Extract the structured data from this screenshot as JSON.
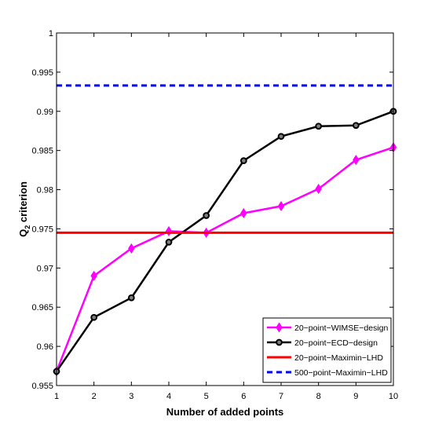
{
  "chart_data": {
    "type": "line",
    "title": "",
    "xlabel": "Number of added points",
    "ylabel_main": "Q",
    "ylabel_sub": "2",
    "ylabel_rest": " criterion",
    "xlim": [
      1,
      10
    ],
    "ylim": [
      0.955,
      1
    ],
    "x": [
      1,
      2,
      3,
      4,
      5,
      6,
      7,
      8,
      9,
      10
    ],
    "x_tick_labels": [
      "1",
      "2",
      "3",
      "4",
      "5",
      "6",
      "7",
      "8",
      "9",
      "10"
    ],
    "y_ticks": [
      0.955,
      0.96,
      0.965,
      0.97,
      0.975,
      0.98,
      0.985,
      0.99,
      0.995,
      1
    ],
    "y_tick_labels": [
      "0.955",
      "0.96",
      "0.965",
      "0.97",
      "0.975",
      "0.98",
      "0.985",
      "0.99",
      "0.995",
      "1"
    ],
    "grid": false,
    "legend_position": "bottom-right",
    "series": [
      {
        "name": "20−point−WIMSE−design",
        "kind": "markers",
        "marker": "diamond",
        "color": "#ff00ff",
        "values": [
          0.9568,
          0.969,
          0.9725,
          0.9747,
          0.9745,
          0.977,
          0.9779,
          0.9801,
          0.9838,
          0.9854
        ]
      },
      {
        "name": "20−point−ECD−design",
        "kind": "markers",
        "marker": "circle",
        "color": "#000000",
        "values": [
          0.9568,
          0.9637,
          0.9662,
          0.9733,
          0.9767,
          0.9837,
          0.9868,
          0.9881,
          0.9882,
          0.99
        ]
      },
      {
        "name": "20−point−Maximin−LHD",
        "kind": "hline",
        "style": "solid",
        "color": "#ff0000",
        "value": 0.9745
      },
      {
        "name": "500−point−Maximin−LHD",
        "kind": "hline",
        "style": "dashed",
        "color": "#0000ff",
        "value": 0.9933
      }
    ]
  }
}
